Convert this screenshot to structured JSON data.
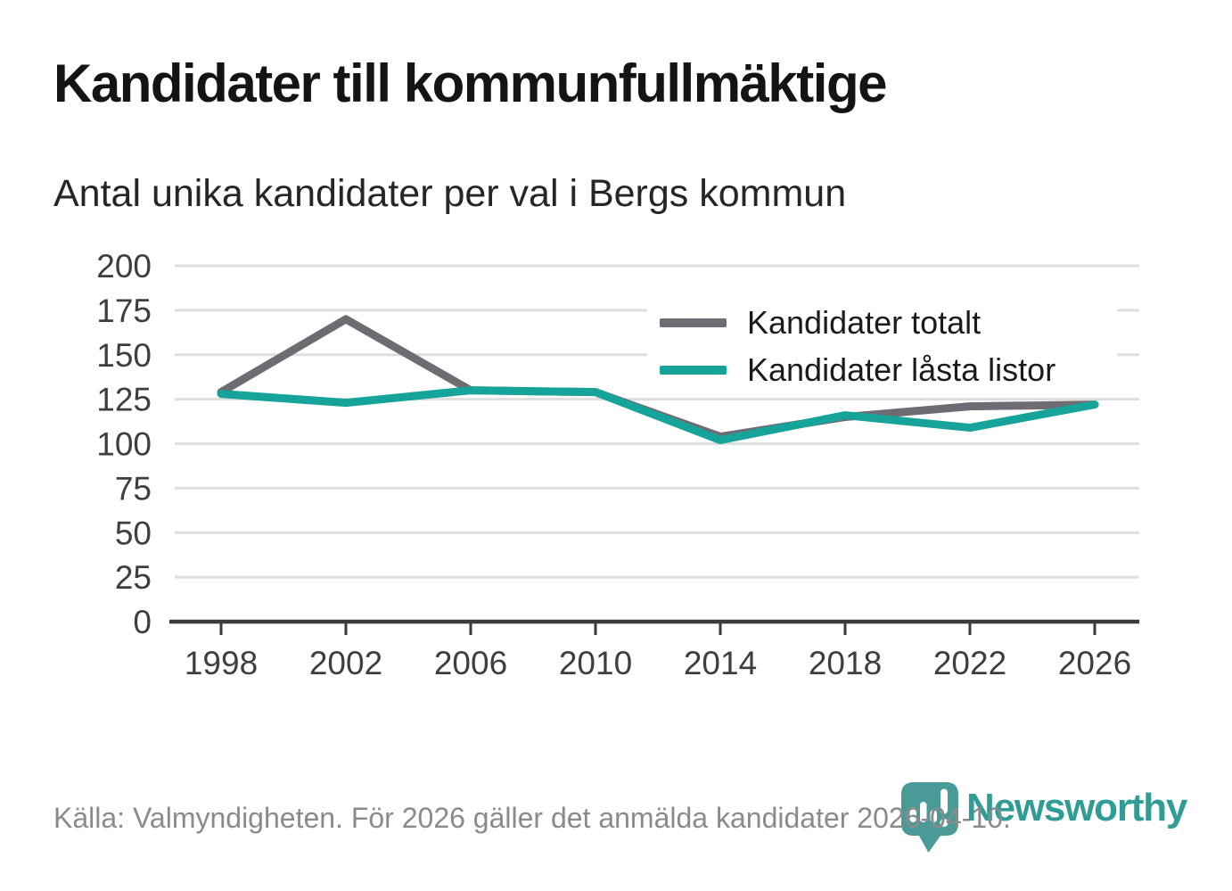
{
  "header": {
    "title": "Kandidater till kommunfullmäktige",
    "subtitle": "Antal unika kandidater per val i Bergs kommun"
  },
  "chart_data": {
    "type": "line",
    "title": "Kandidater till kommunfullmäktige",
    "subtitle": "Antal unika kandidater per val i Bergs kommun",
    "categories": [
      "1998",
      "2002",
      "2006",
      "2010",
      "2014",
      "2018",
      "2022",
      "2026"
    ],
    "series": [
      {
        "name": "Kandidater totalt",
        "color": "#6f6b73",
        "values": [
          129,
          170,
          130,
          129,
          104,
          115,
          121,
          122
        ]
      },
      {
        "name": "Kandidater låsta listor",
        "color": "#16a49a",
        "values": [
          128,
          123,
          130,
          129,
          102,
          116,
          109,
          122
        ]
      }
    ],
    "yticks": [
      0,
      25,
      50,
      75,
      100,
      125,
      150,
      175,
      200
    ],
    "ylim": [
      0,
      200
    ],
    "xlabel": "",
    "ylabel": "",
    "grid": "horizontal",
    "legend_position": "inside-upper-right"
  },
  "footer": {
    "source": "Källa: Valmyndigheten. För 2026 gäller det anmälda kandidater 2026-04-10.",
    "logo_text": "Newsworthy"
  },
  "colors": {
    "series_total": "#6f6b73",
    "series_locked": "#16a49a",
    "axis": "#3b3b3b",
    "grid": "#dedede",
    "logo_pin": "#4a9b97",
    "logo_text": "#2f9c95"
  }
}
